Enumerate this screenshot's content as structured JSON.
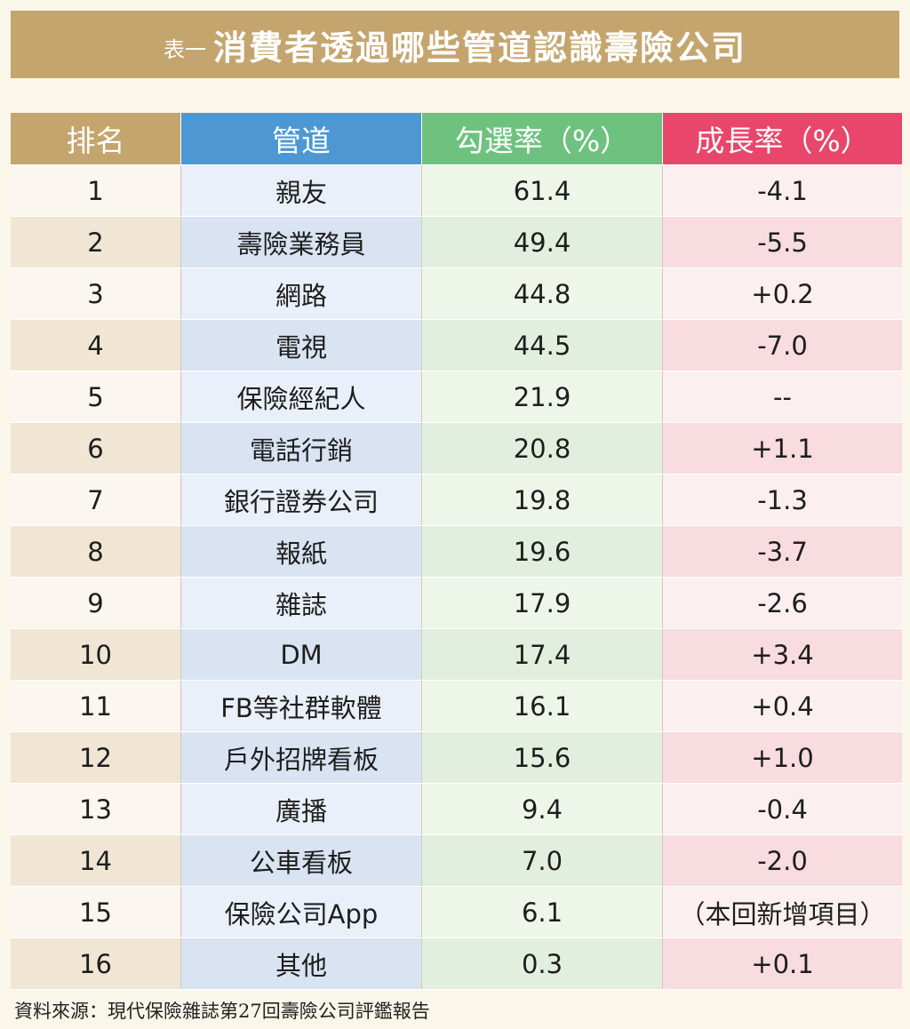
{
  "title": {
    "prefix": "表一",
    "main": "消費者透過哪些管道認識壽險公司"
  },
  "table": {
    "headers": [
      "排名",
      "管道",
      "勾選率（%）",
      "成長率（%）"
    ],
    "rows": [
      {
        "rank": "1",
        "channel": "親友",
        "rate": "61.4",
        "growth": "-4.1"
      },
      {
        "rank": "2",
        "channel": "壽險業務員",
        "rate": "49.4",
        "growth": "-5.5"
      },
      {
        "rank": "3",
        "channel": "網路",
        "rate": "44.8",
        "growth": "+0.2"
      },
      {
        "rank": "4",
        "channel": "電視",
        "rate": "44.5",
        "growth": "-7.0"
      },
      {
        "rank": "5",
        "channel": "保險經紀人",
        "rate": "21.9",
        "growth": "--"
      },
      {
        "rank": "6",
        "channel": "電話行銷",
        "rate": "20.8",
        "growth": "+1.1"
      },
      {
        "rank": "7",
        "channel": "銀行證券公司",
        "rate": "19.8",
        "growth": "-1.3"
      },
      {
        "rank": "8",
        "channel": "報紙",
        "rate": "19.6",
        "growth": "-3.7"
      },
      {
        "rank": "9",
        "channel": "雜誌",
        "rate": "17.9",
        "growth": "-2.6"
      },
      {
        "rank": "10",
        "channel": "DM",
        "rate": "17.4",
        "growth": "+3.4"
      },
      {
        "rank": "11",
        "channel": "FB等社群軟體",
        "rate": "16.1",
        "growth": "+0.4"
      },
      {
        "rank": "12",
        "channel": "戶外招牌看板",
        "rate": "15.6",
        "growth": "+1.0"
      },
      {
        "rank": "13",
        "channel": "廣播",
        "rate": "9.4",
        "growth": "-0.4"
      },
      {
        "rank": "14",
        "channel": "公車看板",
        "rate": "7.0",
        "growth": "-2.0"
      },
      {
        "rank": "15",
        "channel": "保險公司App",
        "rate": "6.1",
        "growth": "（本回新增項目）"
      },
      {
        "rank": "16",
        "channel": "其他",
        "rate": "0.3",
        "growth": "+0.1"
      }
    ]
  },
  "source": "資料來源：現代保險雜誌第27回壽險公司評鑑報告",
  "colors": {
    "gold": "#c4a56e",
    "blue_header": "#4d98d2",
    "green_header": "#6fc17f",
    "pink_header": "#e8466b"
  }
}
